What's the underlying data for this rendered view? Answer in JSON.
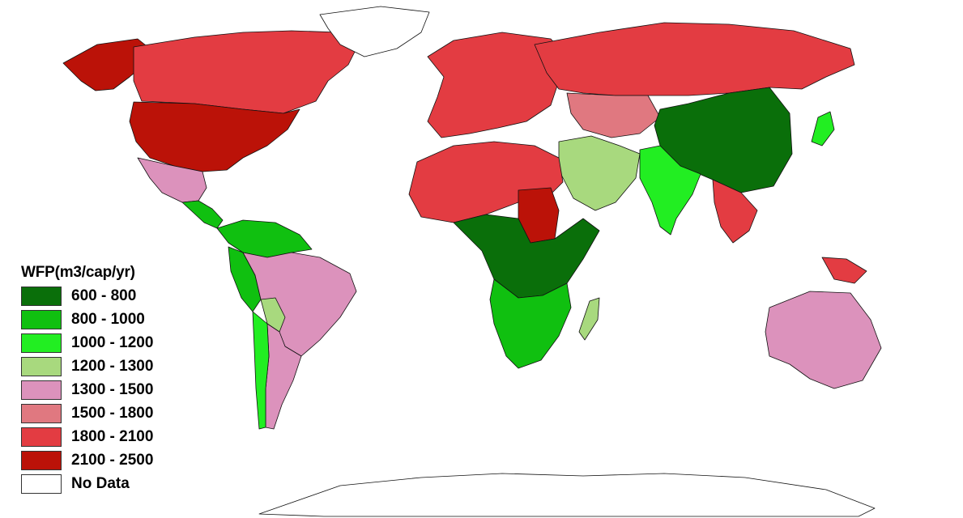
{
  "legend": {
    "title": "WFP(m3/cap/yr)",
    "items": [
      {
        "label": "600 - 800",
        "color": "#0a6f0a"
      },
      {
        "label": "800 - 1000",
        "color": "#10c010"
      },
      {
        "label": "1000 - 1200",
        "color": "#22ee22"
      },
      {
        "label": "1200 - 1300",
        "color": "#a8d97e"
      },
      {
        "label": "1300 - 1500",
        "color": "#dc92bc"
      },
      {
        "label": "1500 - 1800",
        "color": "#e07880"
      },
      {
        "label": "1800 - 2100",
        "color": "#e33c42"
      },
      {
        "label": "2100 - 2500",
        "color": "#bb1208"
      },
      {
        "label": "No Data",
        "color": "#ffffff"
      }
    ]
  },
  "regions": [
    {
      "name": "canada",
      "category": "1800 - 2100"
    },
    {
      "name": "alaska",
      "category": "2100 - 2500"
    },
    {
      "name": "greenland",
      "category": "No Data"
    },
    {
      "name": "usa",
      "category": "2100 - 2500"
    },
    {
      "name": "mexico",
      "category": "1300 - 1500"
    },
    {
      "name": "central-america",
      "category": "800 - 1000"
    },
    {
      "name": "south-america-north",
      "category": "800 - 1000"
    },
    {
      "name": "peru",
      "category": "800 - 1000"
    },
    {
      "name": "brazil",
      "category": "1300 - 1500"
    },
    {
      "name": "bolivia",
      "category": "1200 - 1300"
    },
    {
      "name": "argentina",
      "category": "1300 - 1500"
    },
    {
      "name": "chile",
      "category": "1000 - 1200"
    },
    {
      "name": "europe",
      "category": "1800 - 2100"
    },
    {
      "name": "russia",
      "category": "1800 - 2100"
    },
    {
      "name": "kazakhstan",
      "category": "1500 - 1800"
    },
    {
      "name": "china",
      "category": "600 - 800"
    },
    {
      "name": "india",
      "category": "1000 - 1200"
    },
    {
      "name": "middle-east",
      "category": "1200 - 1300"
    },
    {
      "name": "north-africa",
      "category": "1800 - 2100"
    },
    {
      "name": "sudan",
      "category": "2100 - 2500"
    },
    {
      "name": "central-africa",
      "category": "600 - 800"
    },
    {
      "name": "southern-africa",
      "category": "800 - 1000"
    },
    {
      "name": "madagascar",
      "category": "1200 - 1300"
    },
    {
      "name": "southeast-asia",
      "category": "1800 - 2100"
    },
    {
      "name": "japan",
      "category": "1000 - 1200"
    },
    {
      "name": "australia",
      "category": "1300 - 1500"
    },
    {
      "name": "new-guinea",
      "category": "1800 - 2100"
    },
    {
      "name": "antarctica",
      "category": "No Data"
    }
  ]
}
